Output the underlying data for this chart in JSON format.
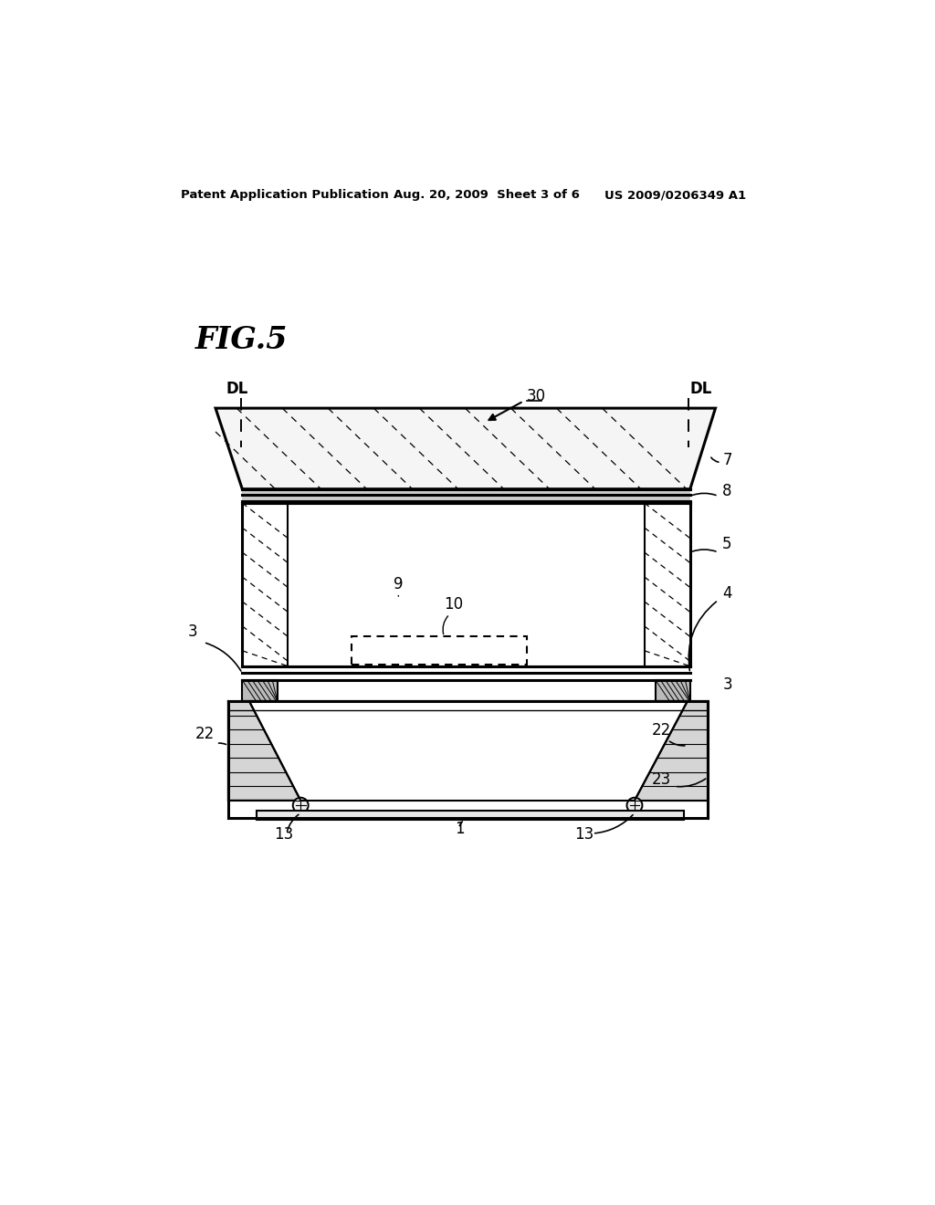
{
  "bg_color": "#ffffff",
  "header_left": "Patent Application Publication",
  "header_mid": "Aug. 20, 2009  Sheet 3 of 6",
  "header_right": "US 2009/0206349 A1",
  "fig_label": "FIG.5",
  "line_color": "#000000"
}
